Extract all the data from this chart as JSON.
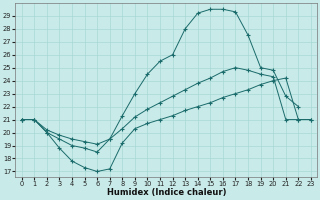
{
  "xlabel": "Humidex (Indice chaleur)",
  "bg_color": "#c8eae8",
  "grid_color": "#a8d8d4",
  "line_color": "#1a6b6b",
  "xlim": [
    -0.5,
    23.5
  ],
  "ylim": [
    16.6,
    30.0
  ],
  "yticks": [
    17,
    18,
    19,
    20,
    21,
    22,
    23,
    24,
    25,
    26,
    27,
    28,
    29
  ],
  "xticks": [
    0,
    1,
    2,
    3,
    4,
    5,
    6,
    7,
    8,
    9,
    10,
    11,
    12,
    13,
    14,
    15,
    16,
    17,
    18,
    19,
    20,
    21,
    22,
    23
  ],
  "line_top_x": [
    0,
    1,
    2,
    3,
    4,
    5,
    6,
    7,
    8,
    9,
    10,
    11,
    12,
    13,
    14,
    15,
    16,
    17,
    18,
    19,
    20,
    21,
    22
  ],
  "line_top_y": [
    21,
    21,
    20,
    19.5,
    19.0,
    18.8,
    18.5,
    19.5,
    21.3,
    23.0,
    24.5,
    25.5,
    26.0,
    28.0,
    29.2,
    29.5,
    29.5,
    29.3,
    27.5,
    25.0,
    24.8,
    22.8,
    22.0
  ],
  "line_mid_x": [
    0,
    1,
    2,
    3,
    4,
    5,
    6,
    7,
    8,
    9,
    10,
    11,
    12,
    13,
    14,
    15,
    16,
    17,
    18,
    19,
    20,
    21,
    22,
    23
  ],
  "line_mid_y": [
    21,
    21,
    20.2,
    19.8,
    19.5,
    19.3,
    19.1,
    19.5,
    20.3,
    21.2,
    21.8,
    22.3,
    22.8,
    23.3,
    23.8,
    24.2,
    24.7,
    25.0,
    24.8,
    24.5,
    24.3,
    21.0,
    21.0,
    21.0
  ],
  "line_bot_x": [
    0,
    1,
    2,
    3,
    4,
    5,
    6,
    7,
    8,
    9,
    10,
    11,
    12,
    13,
    14,
    15,
    16,
    17,
    18,
    19,
    20,
    21,
    22,
    23
  ],
  "line_bot_y": [
    21,
    21,
    20,
    18.8,
    17.8,
    17.3,
    17.0,
    17.2,
    19.2,
    20.3,
    20.7,
    21.0,
    21.3,
    21.7,
    22.0,
    22.3,
    22.7,
    23.0,
    23.3,
    23.7,
    24.0,
    24.2,
    21.0,
    21.0
  ]
}
